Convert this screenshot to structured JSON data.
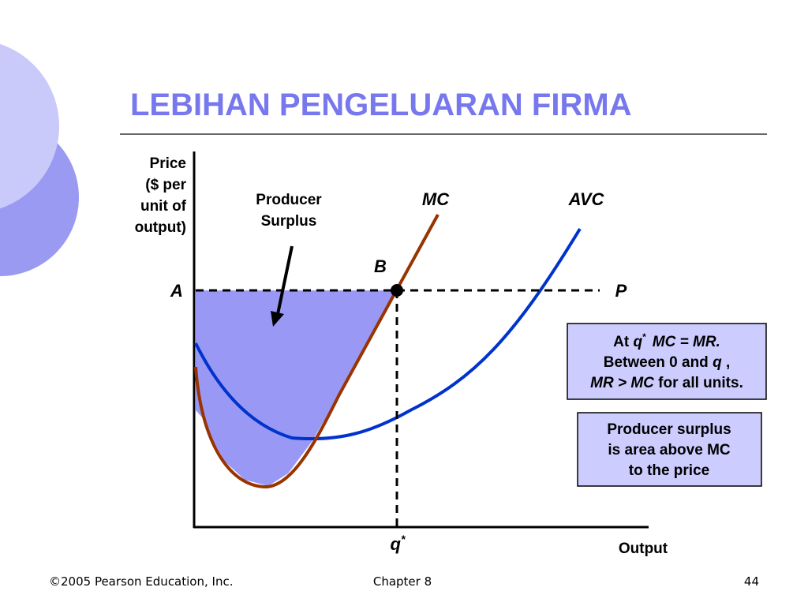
{
  "title": "LEBIHAN PENGELUARAN FIRMA",
  "y_axis_label": [
    "Price",
    "($ per",
    "unit of",
    "output)"
  ],
  "x_axis_label": "Output",
  "curves": {
    "mc": "MC",
    "avc": "AVC"
  },
  "points": {
    "a": "A",
    "b": "B",
    "p": "P",
    "q": "q",
    "q_sup": "*"
  },
  "surplus_label": [
    "Producer",
    "Surplus"
  ],
  "box1": {
    "lines": [
      [
        "At",
        "q",
        "*",
        "MC = MR."
      ],
      [
        "Between 0 and",
        "q",
        ","
      ],
      [
        "MR > MC",
        "for all units."
      ]
    ]
  },
  "box2": {
    "lines": [
      "Producer surplus",
      "is area above MC",
      "to the price"
    ]
  },
  "footer": {
    "left": "©2005 Pearson Education, Inc.",
    "center": "Chapter 8",
    "page": 44
  }
}
